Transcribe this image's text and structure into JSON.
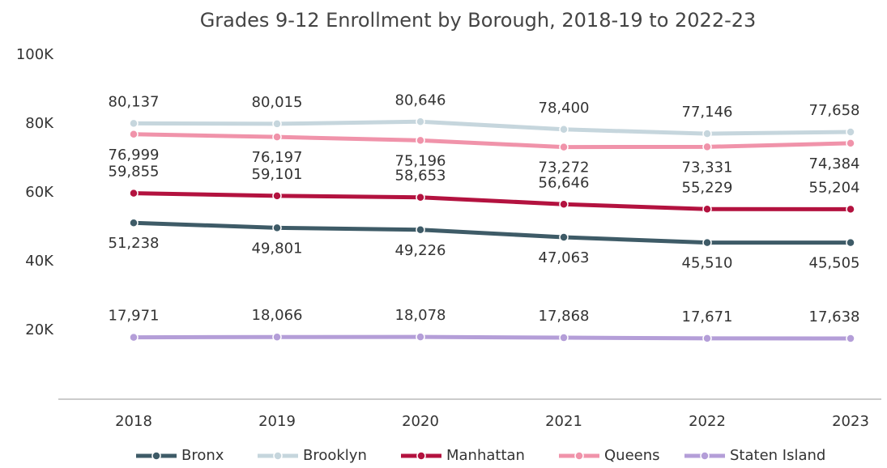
{
  "chart_data": {
    "type": "line",
    "title": "Grades 9-12 Enrollment by Borough, 2018-19 to 2022-23",
    "categories": [
      "2018",
      "2019",
      "2020",
      "2021",
      "2022",
      "2023"
    ],
    "ylim": [
      0,
      100000
    ],
    "yticks": [
      {
        "value": 20000,
        "label": "20K"
      },
      {
        "value": 40000,
        "label": "40K"
      },
      {
        "value": 60000,
        "label": "60K"
      },
      {
        "value": 80000,
        "label": "80K"
      },
      {
        "value": 100000,
        "label": "100K"
      }
    ],
    "grid": false,
    "legend": "bottom",
    "series": [
      {
        "name": "Bronx",
        "color": "#3e5b67",
        "values": [
          51238,
          49801,
          49226,
          47063,
          45510,
          45505
        ],
        "value_labels": [
          "51,238",
          "49,801",
          "49,226",
          "47,063",
          "45,510",
          "45,505"
        ]
      },
      {
        "name": "Brooklyn",
        "color": "#c6d6dd",
        "values": [
          80137,
          80015,
          80646,
          78400,
          77146,
          77658
        ],
        "value_labels": [
          "80,137",
          "80,015",
          "80,646",
          "78,400",
          "77,146",
          "77,658"
        ]
      },
      {
        "name": "Manhattan",
        "color": "#b3123f",
        "values": [
          59855,
          59101,
          58653,
          56646,
          55229,
          55204
        ],
        "value_labels": [
          "59,855",
          "59,101",
          "58,653",
          "56,646",
          "55,229",
          "55,204"
        ]
      },
      {
        "name": "Queens",
        "color": "#f093aa",
        "values": [
          76999,
          76197,
          75196,
          73272,
          73331,
          74384
        ],
        "value_labels": [
          "76,999",
          "76,197",
          "75,196",
          "73,272",
          "73,331",
          "74,384"
        ]
      },
      {
        "name": "Staten Island",
        "color": "#b49ed8",
        "values": [
          17971,
          18066,
          18078,
          17868,
          17671,
          17638
        ],
        "value_labels": [
          "17,971",
          "18,066",
          "18,078",
          "17,868",
          "17,671",
          "17,638"
        ]
      }
    ]
  }
}
